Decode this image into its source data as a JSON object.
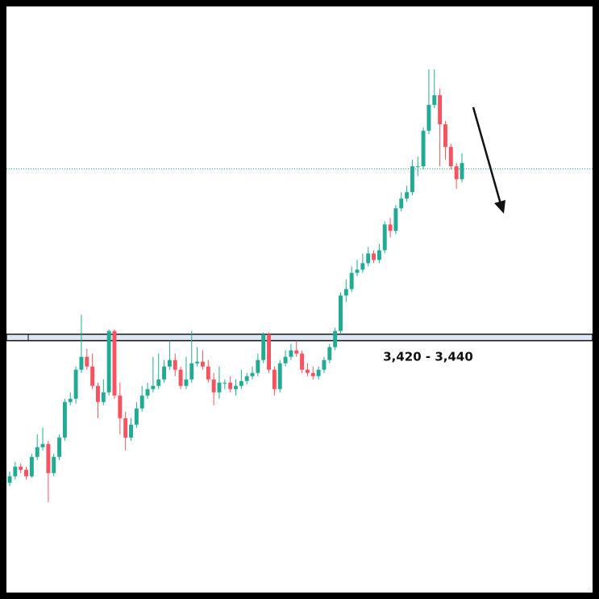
{
  "chart_data": {
    "type": "candlestick",
    "up_color": "#22ab94",
    "down_color": "#f7525f",
    "ylim": [
      2640,
      4455
    ],
    "zone": {
      "low": 3420,
      "high": 3440,
      "label": "3,420 - 3,440",
      "color": "#dbe7f5"
    },
    "price_line": {
      "value": 3952,
      "color": "#22ab94"
    },
    "open": [
      2980,
      3000,
      3030,
      3020,
      3000,
      3060,
      3090,
      3100,
      3010,
      3060,
      3120,
      3230,
      3240,
      3330,
      3370,
      3340,
      3280,
      3230,
      3260,
      3450,
      3250,
      3180,
      3120,
      3160,
      3210,
      3250,
      3270,
      3280,
      3300,
      3340,
      3360,
      3330,
      3280,
      3300,
      3350,
      3355,
      3340,
      3300,
      3260,
      3290,
      3290,
      3270,
      3280,
      3295,
      3310,
      3320,
      3360,
      3440,
      3330,
      3270,
      3350,
      3370,
      3390,
      3380,
      3330,
      3320,
      3310,
      3330,
      3360,
      3400,
      3450,
      3560,
      3580,
      3630,
      3640,
      3660,
      3690,
      3670,
      3700,
      3780,
      3760,
      3830,
      3860,
      3880,
      3960,
      3960,
      4070,
      4150,
      4180,
      4090,
      4020,
      3960,
      3920
    ],
    "high": [
      3015,
      3045,
      3040,
      3030,
      3070,
      3130,
      3150,
      3110,
      3070,
      3130,
      3240,
      3260,
      3340,
      3500,
      3395,
      3380,
      3290,
      3300,
      3455,
      3455,
      3290,
      3200,
      3180,
      3230,
      3280,
      3290,
      3370,
      3380,
      3360,
      3420,
      3380,
      3340,
      3370,
      3450,
      3400,
      3390,
      3360,
      3320,
      3340,
      3300,
      3310,
      3300,
      3330,
      3320,
      3340,
      3380,
      3445,
      3445,
      3340,
      3360,
      3390,
      3410,
      3420,
      3390,
      3350,
      3340,
      3340,
      3370,
      3410,
      3460,
      3570,
      3610,
      3650,
      3670,
      3690,
      3710,
      3700,
      3720,
      3790,
      3800,
      3840,
      3880,
      3900,
      3980,
      3990,
      4080,
      4260,
      4260,
      4200,
      4100,
      4030,
      3970,
      4000
    ],
    "low": [
      2970,
      2990,
      3010,
      2990,
      2995,
      3050,
      3080,
      2920,
      3000,
      3050,
      3110,
      3220,
      3225,
      3320,
      3330,
      3270,
      3180,
      3220,
      3250,
      3240,
      3130,
      3080,
      3110,
      3150,
      3200,
      3240,
      3260,
      3270,
      3290,
      3330,
      3310,
      3270,
      3270,
      3290,
      3340,
      3330,
      3290,
      3220,
      3240,
      3270,
      3260,
      3250,
      3270,
      3285,
      3300,
      3310,
      3350,
      3320,
      3250,
      3260,
      3340,
      3360,
      3370,
      3320,
      3310,
      3300,
      3300,
      3320,
      3350,
      3390,
      3440,
      3540,
      3570,
      3620,
      3630,
      3650,
      3660,
      3660,
      3690,
      3740,
      3750,
      3820,
      3850,
      3870,
      3930,
      3950,
      4060,
      4140,
      3960,
      3980,
      3950,
      3890,
      3910
    ],
    "close": [
      3000,
      3030,
      3020,
      3000,
      3060,
      3090,
      3100,
      3010,
      3060,
      3120,
      3230,
      3240,
      3330,
      3370,
      3340,
      3280,
      3230,
      3260,
      3450,
      3250,
      3180,
      3120,
      3160,
      3210,
      3250,
      3270,
      3280,
      3300,
      3340,
      3360,
      3330,
      3280,
      3300,
      3350,
      3355,
      3340,
      3300,
      3260,
      3290,
      3290,
      3270,
      3280,
      3295,
      3310,
      3320,
      3360,
      3440,
      3330,
      3270,
      3350,
      3370,
      3390,
      3380,
      3330,
      3320,
      3310,
      3330,
      3360,
      3400,
      3450,
      3560,
      3580,
      3630,
      3640,
      3660,
      3690,
      3670,
      3700,
      3780,
      3760,
      3830,
      3860,
      3880,
      3960,
      3960,
      4070,
      4150,
      4180,
      4090,
      4020,
      3960,
      3920,
      3970
    ]
  }
}
